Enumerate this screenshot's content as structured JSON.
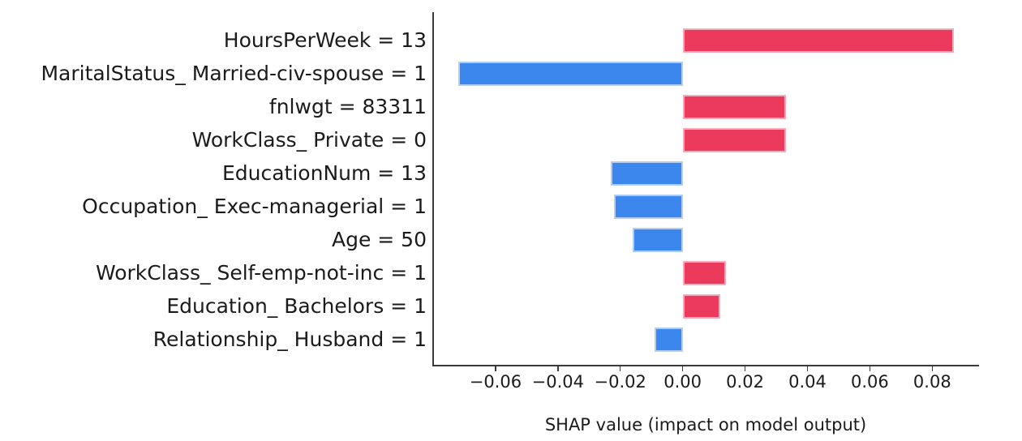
{
  "chart_data": {
    "type": "bar",
    "orientation": "horizontal",
    "title": "",
    "xlabel": "SHAP value (impact on model output)",
    "ylabel": "",
    "grid": false,
    "legend": null,
    "xlim": [
      -0.08,
      0.095
    ],
    "x_ticks": [
      -0.06,
      -0.04,
      -0.02,
      0.0,
      0.02,
      0.04,
      0.06,
      0.08
    ],
    "x_tick_labels": [
      "−0.06",
      "−0.04",
      "−0.02",
      "0.00",
      "0.02",
      "0.04",
      "0.06",
      "0.08"
    ],
    "categories": [
      "HoursPerWeek = 13",
      "MaritalStatus_ Married-civ-spouse = 1",
      "fnlwgt = 83311",
      "WorkClass_ Private = 0",
      "EducationNum = 13",
      "Occupation_ Exec-managerial = 1",
      "Age = 50",
      "WorkClass_ Self-emp-not-inc = 1",
      "Education_ Bachelors = 1",
      "Relationship_ Husband = 1"
    ],
    "values": [
      0.087,
      -0.072,
      0.033,
      0.033,
      -0.023,
      -0.022,
      -0.016,
      0.014,
      0.012,
      -0.009
    ],
    "colors": {
      "positive_fill": "#ec3a5c",
      "positive_edge": "#f6abbd",
      "negative_fill": "#3c87ee",
      "negative_edge": "#b0cef5",
      "axis": "#3a3a3a",
      "text": "#1b1b1b"
    }
  }
}
